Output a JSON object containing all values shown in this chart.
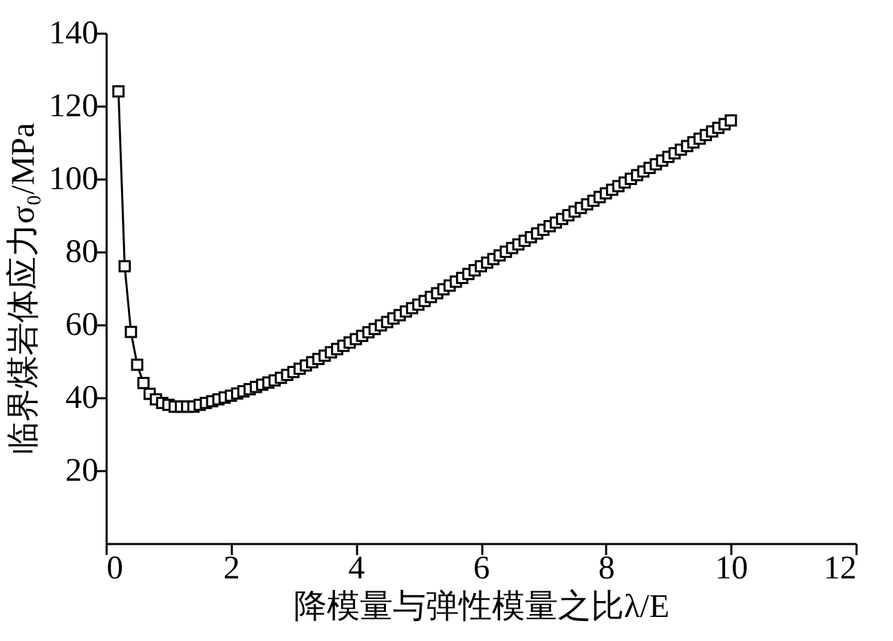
{
  "chart_data": {
    "type": "line",
    "xlabel": "降模量与弹性模量之比λ/E",
    "ylabel": "临界煤岩体应力σ₀/MPa",
    "x": [
      0.2,
      0.3,
      0.4,
      0.5,
      0.6,
      0.7,
      0.8,
      0.9,
      1.0,
      1.1,
      1.2,
      1.3,
      1.4,
      1.5,
      1.6,
      1.7,
      1.8,
      1.9,
      2.0,
      2.1,
      2.2,
      2.3,
      2.4,
      2.5,
      2.6,
      2.7,
      2.8,
      2.9,
      3.0,
      3.1,
      3.2,
      3.3,
      3.4,
      3.5,
      3.6,
      3.7,
      3.8,
      3.9,
      4.0,
      4.1,
      4.2,
      4.3,
      4.4,
      4.5,
      4.6,
      4.7,
      4.8,
      4.9,
      5.0,
      5.1,
      5.2,
      5.3,
      5.4,
      5.5,
      5.6,
      5.7,
      5.8,
      5.9,
      6.0,
      6.1,
      6.2,
      6.3,
      6.4,
      6.5,
      6.6,
      6.7,
      6.8,
      6.9,
      7.0,
      7.1,
      7.2,
      7.3,
      7.4,
      7.5,
      7.6,
      7.7,
      7.8,
      7.9,
      8.0,
      8.1,
      8.2,
      8.3,
      8.4,
      8.5,
      8.6,
      8.7,
      8.8,
      8.9,
      9.0,
      9.1,
      9.2,
      9.3,
      9.4,
      9.5,
      9.6,
      9.7,
      9.8,
      9.9,
      10.0
    ],
    "series": [
      {
        "color": "#000000",
        "values": [
          124,
          76,
          58,
          49,
          44,
          41,
          39.5,
          38.5,
          38,
          37.5,
          37.5,
          37.5,
          37.5,
          38,
          38.5,
          39,
          39.5,
          40,
          40.5,
          41.1,
          41.7,
          42.3,
          42.9,
          43.5,
          44.1,
          44.7,
          45.4,
          46.2,
          47,
          47.9,
          48.8,
          49.7,
          50.6,
          51.5,
          52.4,
          53.3,
          54.2,
          55.1,
          56,
          56.9,
          57.9,
          58.8,
          59.8,
          60.7,
          61.7,
          62.6,
          63.6,
          64.5,
          65.5,
          66.5,
          67.6,
          68.6,
          69.7,
          70.7,
          71.8,
          72.8,
          73.9,
          74.9,
          76,
          77,
          78,
          79,
          80,
          81,
          82,
          83,
          84,
          85,
          86,
          87,
          88,
          89,
          90,
          91,
          92,
          93,
          94,
          95,
          96,
          97,
          98,
          99,
          100,
          101,
          102,
          103,
          104,
          105,
          106,
          107,
          108,
          109,
          110,
          111,
          112,
          113,
          114,
          115,
          116
        ]
      }
    ],
    "xlim": [
      0,
      12
    ],
    "xticks": [
      0,
      2,
      4,
      6,
      8,
      10,
      12
    ],
    "ylim": [
      0,
      140
    ],
    "yticks": [
      20,
      40,
      60,
      80,
      100,
      120,
      140
    ],
    "marker": "square",
    "line_style": "solid",
    "grid": false,
    "legend": false
  }
}
